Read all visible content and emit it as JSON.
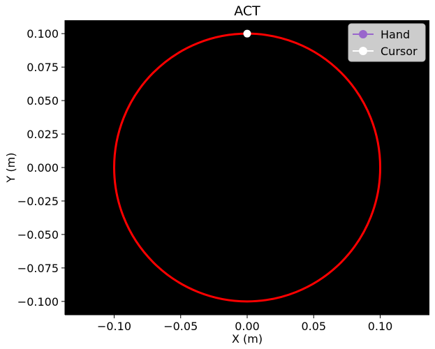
{
  "chart_data": {
    "type": "line",
    "title": "ACT",
    "xlabel": "X (m)",
    "ylabel": "Y (m)",
    "xlim": [
      -0.137,
      0.137
    ],
    "ylim": [
      -0.11,
      0.11
    ],
    "xticks": [
      -0.1,
      -0.05,
      0.0,
      0.05,
      0.1
    ],
    "xtick_labels": [
      "−0.10",
      "−0.05",
      "0.00",
      "0.05",
      "0.10"
    ],
    "yticks": [
      0.1,
      0.075,
      0.05,
      0.025,
      0.0,
      -0.025,
      -0.05,
      -0.075,
      -0.1
    ],
    "ytick_labels": [
      "0.100",
      "0.075",
      "0.050",
      "0.025",
      "0.000",
      "−0.025",
      "−0.050",
      "−0.075",
      "−0.100"
    ],
    "plot_background": "#000000",
    "grid": false,
    "target_circle": {
      "center": [
        0.0,
        0.0
      ],
      "radius": 0.1,
      "color": "#ff0000"
    },
    "series": [
      {
        "name": "Hand",
        "color": "#9966cc",
        "marker": "circle",
        "points": []
      },
      {
        "name": "Cursor",
        "color": "#ffffff",
        "marker": "circle",
        "points": [
          [
            0.0,
            0.1
          ]
        ]
      }
    ],
    "legend_position": "top-right"
  }
}
